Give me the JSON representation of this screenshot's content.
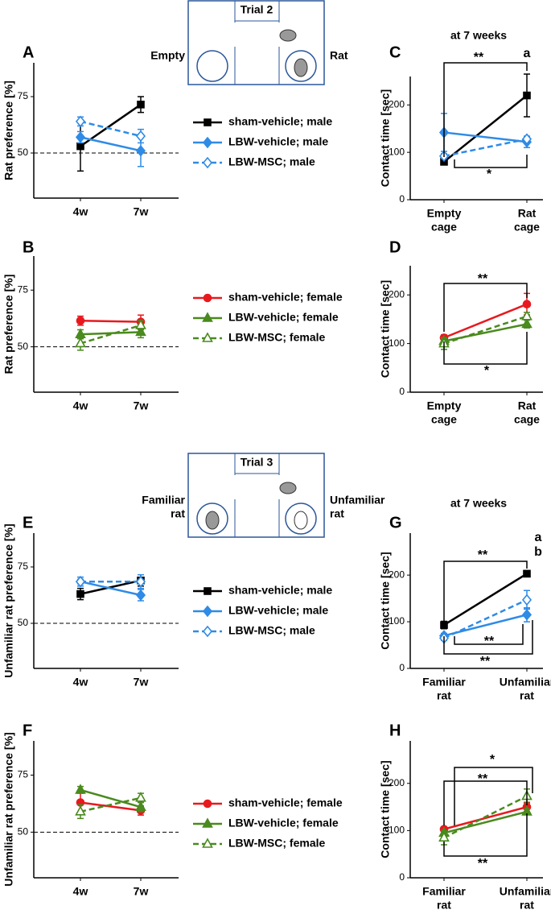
{
  "diagrams": [
    {
      "title": "Trial 2",
      "left": [
        "Empty"
      ],
      "right": [
        "Rat"
      ]
    },
    {
      "title": "Trial 3",
      "left": [
        "Familiar",
        "rat"
      ],
      "right": [
        "Unfamiliar",
        "rat"
      ]
    }
  ],
  "chart_data": [
    {
      "type": "line",
      "label": "A",
      "y_label": "Rat preference [%]",
      "categories": [
        [
          "4w"
        ],
        [
          "7w"
        ]
      ],
      "ylim": [
        30,
        90
      ],
      "yticks": [
        50,
        75
      ],
      "reference_line": 50,
      "series": [
        {
          "name": "sham-vehicle; male",
          "color": "#000000",
          "marker": "square",
          "dashed": false,
          "values": [
            53,
            71.5
          ],
          "errors": [
            11,
            3.5
          ]
        },
        {
          "name": "LBW-vehicle; male",
          "color": "#2f8be6",
          "marker": "diamond",
          "dashed": false,
          "values": [
            57,
            51
          ],
          "errors": [
            2.5,
            7
          ]
        },
        {
          "name": "LBW-MSC; male",
          "color": "#2f8be6",
          "marker": "open-diamond",
          "dashed": true,
          "values": [
            64,
            57.5
          ],
          "errors": [
            2,
            3
          ]
        }
      ]
    },
    {
      "type": "line",
      "label": "B",
      "y_label": "Rat preference [%]",
      "categories": [
        [
          "4w"
        ],
        [
          "7w"
        ]
      ],
      "ylim": [
        30,
        90
      ],
      "yticks": [
        50,
        75
      ],
      "reference_line": 50,
      "series": [
        {
          "name": "sham-vehicle; female",
          "color": "#e8191e",
          "marker": "circle",
          "dashed": false,
          "values": [
            61.5,
            61
          ],
          "errors": [
            2,
            3
          ]
        },
        {
          "name": "LBW-vehicle; female",
          "color": "#4a8a1e",
          "marker": "triangle",
          "dashed": false,
          "values": [
            55.5,
            56.5
          ],
          "errors": [
            2,
            2.5
          ]
        },
        {
          "name": "LBW-MSC; female",
          "color": "#4a8a1e",
          "marker": "open-triangle",
          "dashed": true,
          "values": [
            51.5,
            59.5
          ],
          "errors": [
            3,
            2
          ]
        }
      ]
    },
    {
      "type": "line",
      "label": "C",
      "subtitle": "at 7 weeks",
      "y_label": "Contact time [sec]",
      "categories": [
        [
          "Empty",
          "cage"
        ],
        [
          "Rat",
          "cage"
        ]
      ],
      "ylim": [
        0,
        260
      ],
      "yticks": [
        0,
        100,
        200
      ],
      "annotations": [
        "**",
        "a",
        "*"
      ],
      "series": [
        {
          "color": "#000000",
          "marker": "square",
          "dashed": false,
          "values": [
            80,
            220
          ],
          "errors": [
            3,
            45
          ]
        },
        {
          "color": "#2f8be6",
          "marker": "diamond",
          "dashed": false,
          "values": [
            142,
            122
          ],
          "errors": [
            40,
            12
          ]
        },
        {
          "color": "#2f8be6",
          "marker": "open-diamond",
          "dashed": true,
          "values": [
            92,
            128
          ],
          "errors": [
            5,
            6
          ]
        }
      ]
    },
    {
      "type": "line",
      "label": "D",
      "y_label": "Contact time [sec]",
      "categories": [
        [
          "Empty",
          "cage"
        ],
        [
          "Rat",
          "cage"
        ]
      ],
      "ylim": [
        0,
        260
      ],
      "yticks": [
        0,
        100,
        200
      ],
      "annotations": [
        "**",
        "*"
      ],
      "series": [
        {
          "color": "#e8191e",
          "marker": "circle",
          "dashed": false,
          "values": [
            112,
            181
          ],
          "errors": [
            6,
            22
          ]
        },
        {
          "color": "#4a8a1e",
          "marker": "triangle",
          "dashed": false,
          "values": [
            105,
            140
          ],
          "errors": [
            5,
            8
          ]
        },
        {
          "color": "#4a8a1e",
          "marker": "open-triangle",
          "dashed": true,
          "values": [
            100,
            156
          ],
          "errors": [
            12,
            8
          ]
        }
      ]
    },
    {
      "type": "line",
      "label": "E",
      "y_label": "Unfamiliar rat preference [%]",
      "categories": [
        [
          "4w"
        ],
        [
          "7w"
        ]
      ],
      "ylim": [
        30,
        90
      ],
      "yticks": [
        50,
        75
      ],
      "reference_line": 50,
      "series": [
        {
          "name": "sham-vehicle; male",
          "color": "#000000",
          "marker": "square",
          "dashed": false,
          "values": [
            63,
            69
          ],
          "errors": [
            2.5,
            2.5
          ]
        },
        {
          "name": "LBW-vehicle; male",
          "color": "#2f8be6",
          "marker": "diamond",
          "dashed": false,
          "values": [
            68.5,
            62.5
          ],
          "errors": [
            1,
            2.5
          ]
        },
        {
          "name": "LBW-MSC; male",
          "color": "#2f8be6",
          "marker": "open-diamond",
          "dashed": true,
          "values": [
            68.5,
            68.5
          ],
          "errors": [
            2,
            3
          ]
        }
      ]
    },
    {
      "type": "line",
      "label": "F",
      "y_label": "Unfamiliar rat preference [%]",
      "categories": [
        [
          "4w"
        ],
        [
          "7w"
        ]
      ],
      "ylim": [
        30,
        90
      ],
      "yticks": [
        50,
        75
      ],
      "reference_line": 50,
      "series": [
        {
          "name": "sham-vehicle; female",
          "color": "#e8191e",
          "marker": "circle",
          "dashed": false,
          "values": [
            63,
            59.5
          ],
          "errors": [
            5,
            2
          ]
        },
        {
          "name": "LBW-vehicle; female",
          "color": "#4a8a1e",
          "marker": "triangle",
          "dashed": false,
          "values": [
            68.5,
            61
          ],
          "errors": [
            1.5,
            2
          ]
        },
        {
          "name": "LBW-MSC; female",
          "color": "#4a8a1e",
          "marker": "open-triangle",
          "dashed": true,
          "values": [
            59,
            65
          ],
          "errors": [
            3,
            2
          ]
        }
      ]
    },
    {
      "type": "line",
      "label": "G",
      "subtitle": "at 7 weeks",
      "y_label": "Contact time [sec]",
      "categories": [
        [
          "Familiar",
          "rat"
        ],
        [
          "Unfamiliar",
          "rat"
        ]
      ],
      "ylim": [
        0,
        290
      ],
      "yticks": [
        0,
        100,
        200
      ],
      "annotations": [
        "a",
        "b",
        "**",
        "**",
        "**"
      ],
      "series": [
        {
          "color": "#000000",
          "marker": "square",
          "dashed": false,
          "values": [
            93,
            203
          ],
          "errors": [
            8,
            5
          ]
        },
        {
          "color": "#2f8be6",
          "marker": "diamond",
          "dashed": false,
          "values": [
            70,
            115
          ],
          "errors": [
            5,
            15
          ]
        },
        {
          "color": "#2f8be6",
          "marker": "open-diamond",
          "dashed": true,
          "values": [
            65,
            147
          ],
          "errors": [
            5,
            20
          ]
        }
      ]
    },
    {
      "type": "line",
      "label": "H",
      "y_label": "Contact time [sec]",
      "categories": [
        [
          "Familiar",
          "rat"
        ],
        [
          "Unfamiliar",
          "rat"
        ]
      ],
      "ylim": [
        0,
        290
      ],
      "yticks": [
        0,
        100,
        200
      ],
      "annotations": [
        "*",
        "**",
        "**"
      ],
      "series": [
        {
          "color": "#e8191e",
          "marker": "circle",
          "dashed": false,
          "values": [
            103,
            150
          ],
          "errors": [
            5,
            10
          ]
        },
        {
          "color": "#4a8a1e",
          "marker": "triangle",
          "dashed": false,
          "values": [
            95,
            140
          ],
          "errors": [
            5,
            6
          ]
        },
        {
          "color": "#4a8a1e",
          "marker": "open-triangle",
          "dashed": true,
          "values": [
            85,
            173
          ],
          "errors": [
            15,
            15
          ]
        }
      ]
    }
  ]
}
